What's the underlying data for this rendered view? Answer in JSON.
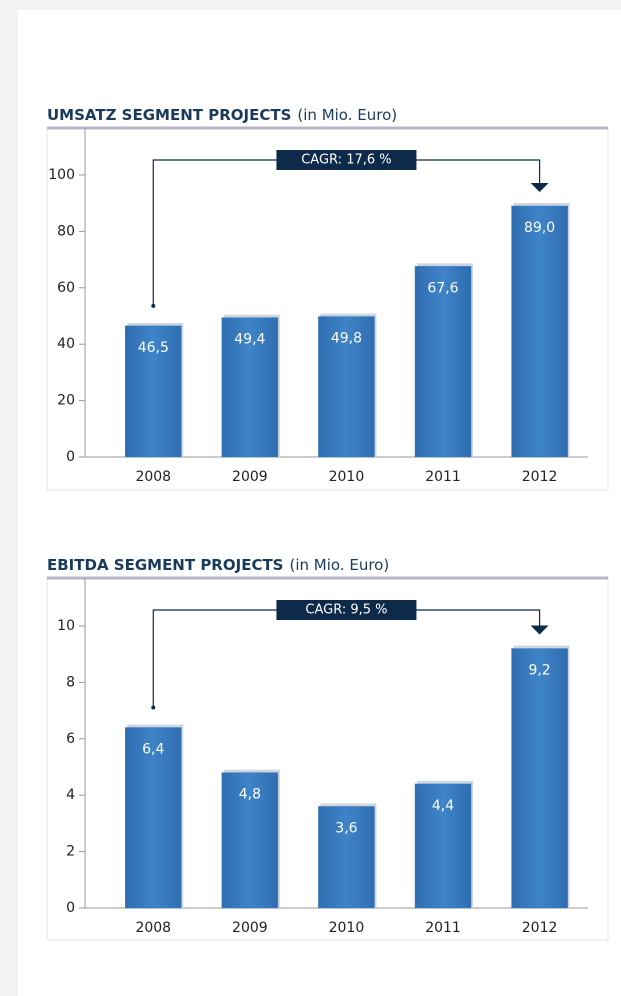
{
  "chart_data": [
    {
      "type": "bar",
      "title": "UMSATZ SEGMENT PROJECTS",
      "subtitle": "(in Mio. Euro)",
      "annotation": "CAGR: 17,6 %",
      "categories": [
        "2008",
        "2009",
        "2010",
        "2011",
        "2012"
      ],
      "values": [
        46.5,
        49.4,
        49.8,
        67.6,
        89.0
      ],
      "value_labels": [
        "46,5",
        "49,4",
        "49,8",
        "67,6",
        "89,0"
      ],
      "color": "#3a7cc0",
      "ylim": [
        0,
        100
      ],
      "yticks": [
        0,
        20,
        40,
        60,
        80,
        100
      ]
    },
    {
      "type": "bar",
      "title": "EBITDA SEGMENT PROJECTS",
      "subtitle": "(in Mio. Euro)",
      "annotation": "CAGR: 9,5 %",
      "categories": [
        "2008",
        "2009",
        "2010",
        "2011",
        "2012"
      ],
      "values": [
        6.4,
        4.8,
        3.6,
        4.4,
        9.2
      ],
      "value_labels": [
        "6,4",
        "4,8",
        "3,6",
        "4,4",
        "9,2"
      ],
      "color": "#3a7cc0",
      "ylim": [
        0,
        10
      ],
      "yticks": [
        0,
        2,
        4,
        6,
        8,
        10
      ]
    }
  ]
}
